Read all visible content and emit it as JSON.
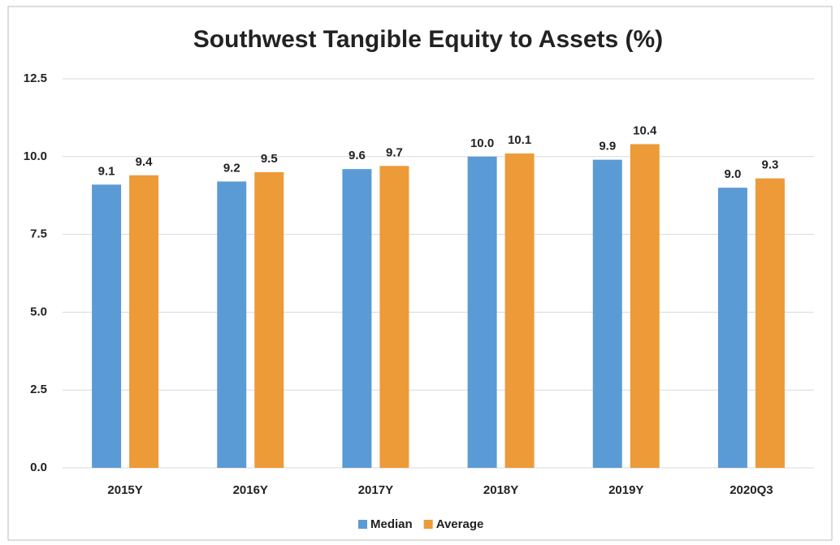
{
  "chart_data": {
    "type": "bar",
    "title": "Southwest Tangible Equity to Assets (%)",
    "categories": [
      "2015Y",
      "2016Y",
      "2017Y",
      "2018Y",
      "2019Y",
      "2020Q3"
    ],
    "series": [
      {
        "name": "Median",
        "color": "#5b9bd5",
        "values": [
          9.1,
          9.2,
          9.6,
          10.0,
          9.9,
          9.0
        ],
        "value_labels": [
          "9.1",
          "9.2",
          "9.6",
          "10.0",
          "9.9",
          "9.0"
        ]
      },
      {
        "name": "Average",
        "color": "#ed9a38",
        "values": [
          9.4,
          9.5,
          9.7,
          10.1,
          10.4,
          9.3
        ],
        "value_labels": [
          "9.4",
          "9.5",
          "9.7",
          "10.1",
          "10.4",
          "9.3"
        ]
      }
    ],
    "ylim": [
      0,
      12.5
    ],
    "yticks": [
      {
        "value": 0,
        "label": "0.0"
      },
      {
        "value": 2.5,
        "label": "2.5"
      },
      {
        "value": 5,
        "label": "5.0"
      },
      {
        "value": 7.5,
        "label": "7.5"
      },
      {
        "value": 10,
        "label": "10.0"
      },
      {
        "value": 12.5,
        "label": "12.5"
      }
    ],
    "grid": true,
    "legend": "bottom"
  }
}
